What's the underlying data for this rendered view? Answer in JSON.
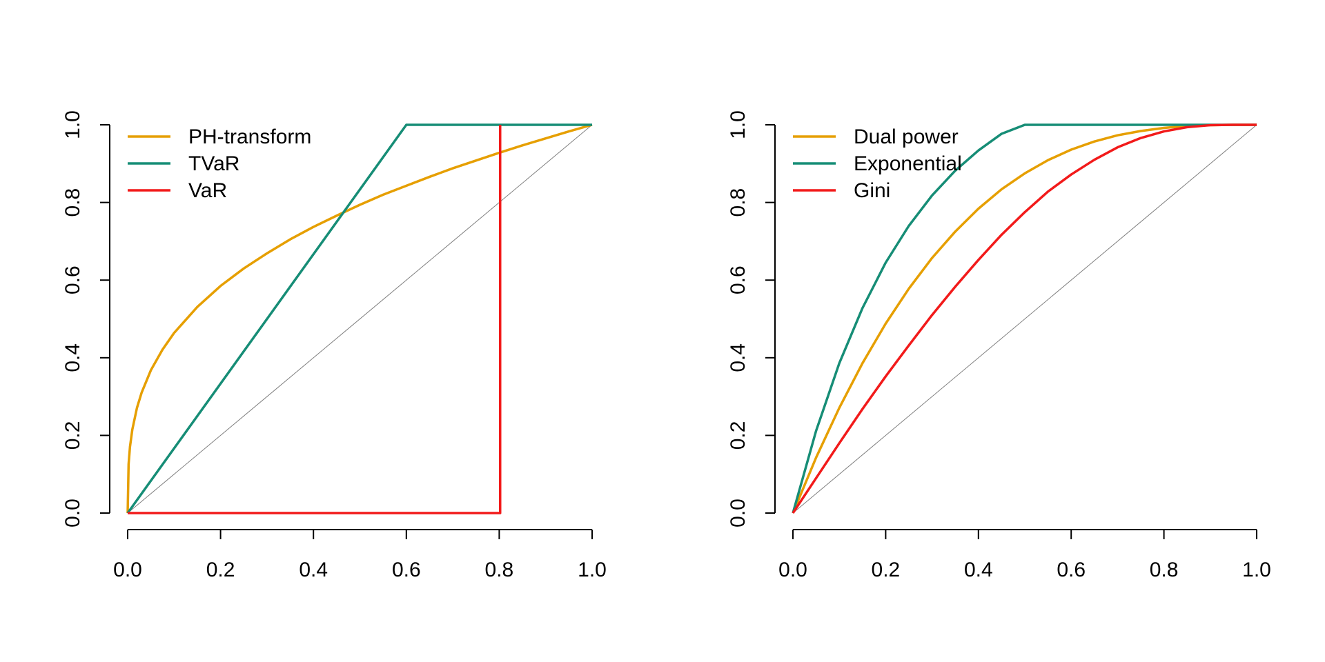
{
  "chart_data": [
    {
      "type": "line",
      "xlim": [
        0,
        1
      ],
      "ylim": [
        0,
        1
      ],
      "x_ticks": [
        "0.0",
        "0.2",
        "0.4",
        "0.6",
        "0.8",
        "1.0"
      ],
      "y_ticks": [
        "0.0",
        "0.2",
        "0.4",
        "0.6",
        "0.8",
        "1.0"
      ],
      "reference_line": {
        "x": [
          0,
          1
        ],
        "y": [
          0,
          1
        ],
        "color": "#808080"
      },
      "legend_position": "top-left",
      "series": [
        {
          "name": "PH-transform",
          "color": "#E69F00",
          "x": [
            0,
            0.002,
            0.005,
            0.01,
            0.02,
            0.03,
            0.05,
            0.075,
            0.1,
            0.15,
            0.2,
            0.25,
            0.3,
            0.35,
            0.4,
            0.45,
            0.5,
            0.55,
            0.6,
            0.65,
            0.7,
            0.75,
            0.8,
            0.85,
            0.9,
            0.95,
            1.0
          ],
          "y": [
            0,
            0.126,
            0.171,
            0.215,
            0.271,
            0.31,
            0.368,
            0.421,
            0.464,
            0.531,
            0.585,
            0.63,
            0.669,
            0.705,
            0.737,
            0.766,
            0.794,
            0.82,
            0.843,
            0.866,
            0.888,
            0.908,
            0.928,
            0.947,
            0.965,
            0.983,
            1.0
          ]
        },
        {
          "name": "TVaR",
          "color": "#168D76",
          "x": [
            0,
            0.6,
            1.0
          ],
          "y": [
            0,
            1.0,
            1.0
          ]
        },
        {
          "name": "VaR",
          "color": "#F21A1A",
          "x": [
            0,
            0.8,
            0.802,
            0.802
          ],
          "y": [
            0,
            0,
            0,
            1.0
          ]
        }
      ]
    },
    {
      "type": "line",
      "xlim": [
        0,
        1
      ],
      "ylim": [
        0,
        1
      ],
      "x_ticks": [
        "0.0",
        "0.2",
        "0.4",
        "0.6",
        "0.8",
        "1.0"
      ],
      "y_ticks": [
        "0.0",
        "0.2",
        "0.4",
        "0.6",
        "0.8",
        "1.0"
      ],
      "reference_line": {
        "x": [
          0,
          1
        ],
        "y": [
          0,
          1
        ],
        "color": "#808080"
      },
      "legend_position": "top-left",
      "series": [
        {
          "name": "Dual power",
          "color": "#E69F00",
          "x": [
            0,
            0.05,
            0.1,
            0.15,
            0.2,
            0.25,
            0.3,
            0.35,
            0.4,
            0.45,
            0.5,
            0.55,
            0.6,
            0.65,
            0.7,
            0.75,
            0.8,
            0.85,
            0.9,
            0.95,
            1.0
          ],
          "y": [
            0,
            0.143,
            0.271,
            0.386,
            0.488,
            0.578,
            0.657,
            0.725,
            0.784,
            0.834,
            0.875,
            0.909,
            0.936,
            0.957,
            0.973,
            0.984,
            0.992,
            0.997,
            0.999,
            1.0,
            1.0
          ]
        },
        {
          "name": "Exponential",
          "color": "#168D76",
          "x": [
            0,
            0.05,
            0.1,
            0.15,
            0.2,
            0.25,
            0.3,
            0.35,
            0.4,
            0.45,
            0.5,
            0.55,
            0.6,
            0.65,
            0.7,
            0.75,
            0.8,
            0.85,
            0.9,
            0.95,
            1.0
          ],
          "y": [
            0,
            0.212,
            0.386,
            0.528,
            0.645,
            0.74,
            0.818,
            0.882,
            0.934,
            0.977,
            1.0,
            1.0,
            1.0,
            1.0,
            1.0,
            1.0,
            1.0,
            1.0,
            1.0,
            1.0,
            1.0
          ]
        },
        {
          "name": "Gini",
          "color": "#F21A1A",
          "x": [
            0,
            0.05,
            0.1,
            0.15,
            0.2,
            0.25,
            0.3,
            0.35,
            0.4,
            0.45,
            0.5,
            0.55,
            0.6,
            0.65,
            0.7,
            0.75,
            0.8,
            0.85,
            0.9,
            0.95,
            1.0
          ],
          "y": [
            0,
            0.09,
            0.18,
            0.268,
            0.352,
            0.432,
            0.51,
            0.583,
            0.652,
            0.717,
            0.775,
            0.828,
            0.872,
            0.91,
            0.942,
            0.966,
            0.983,
            0.994,
            0.999,
            1.0,
            1.0
          ]
        }
      ]
    }
  ]
}
